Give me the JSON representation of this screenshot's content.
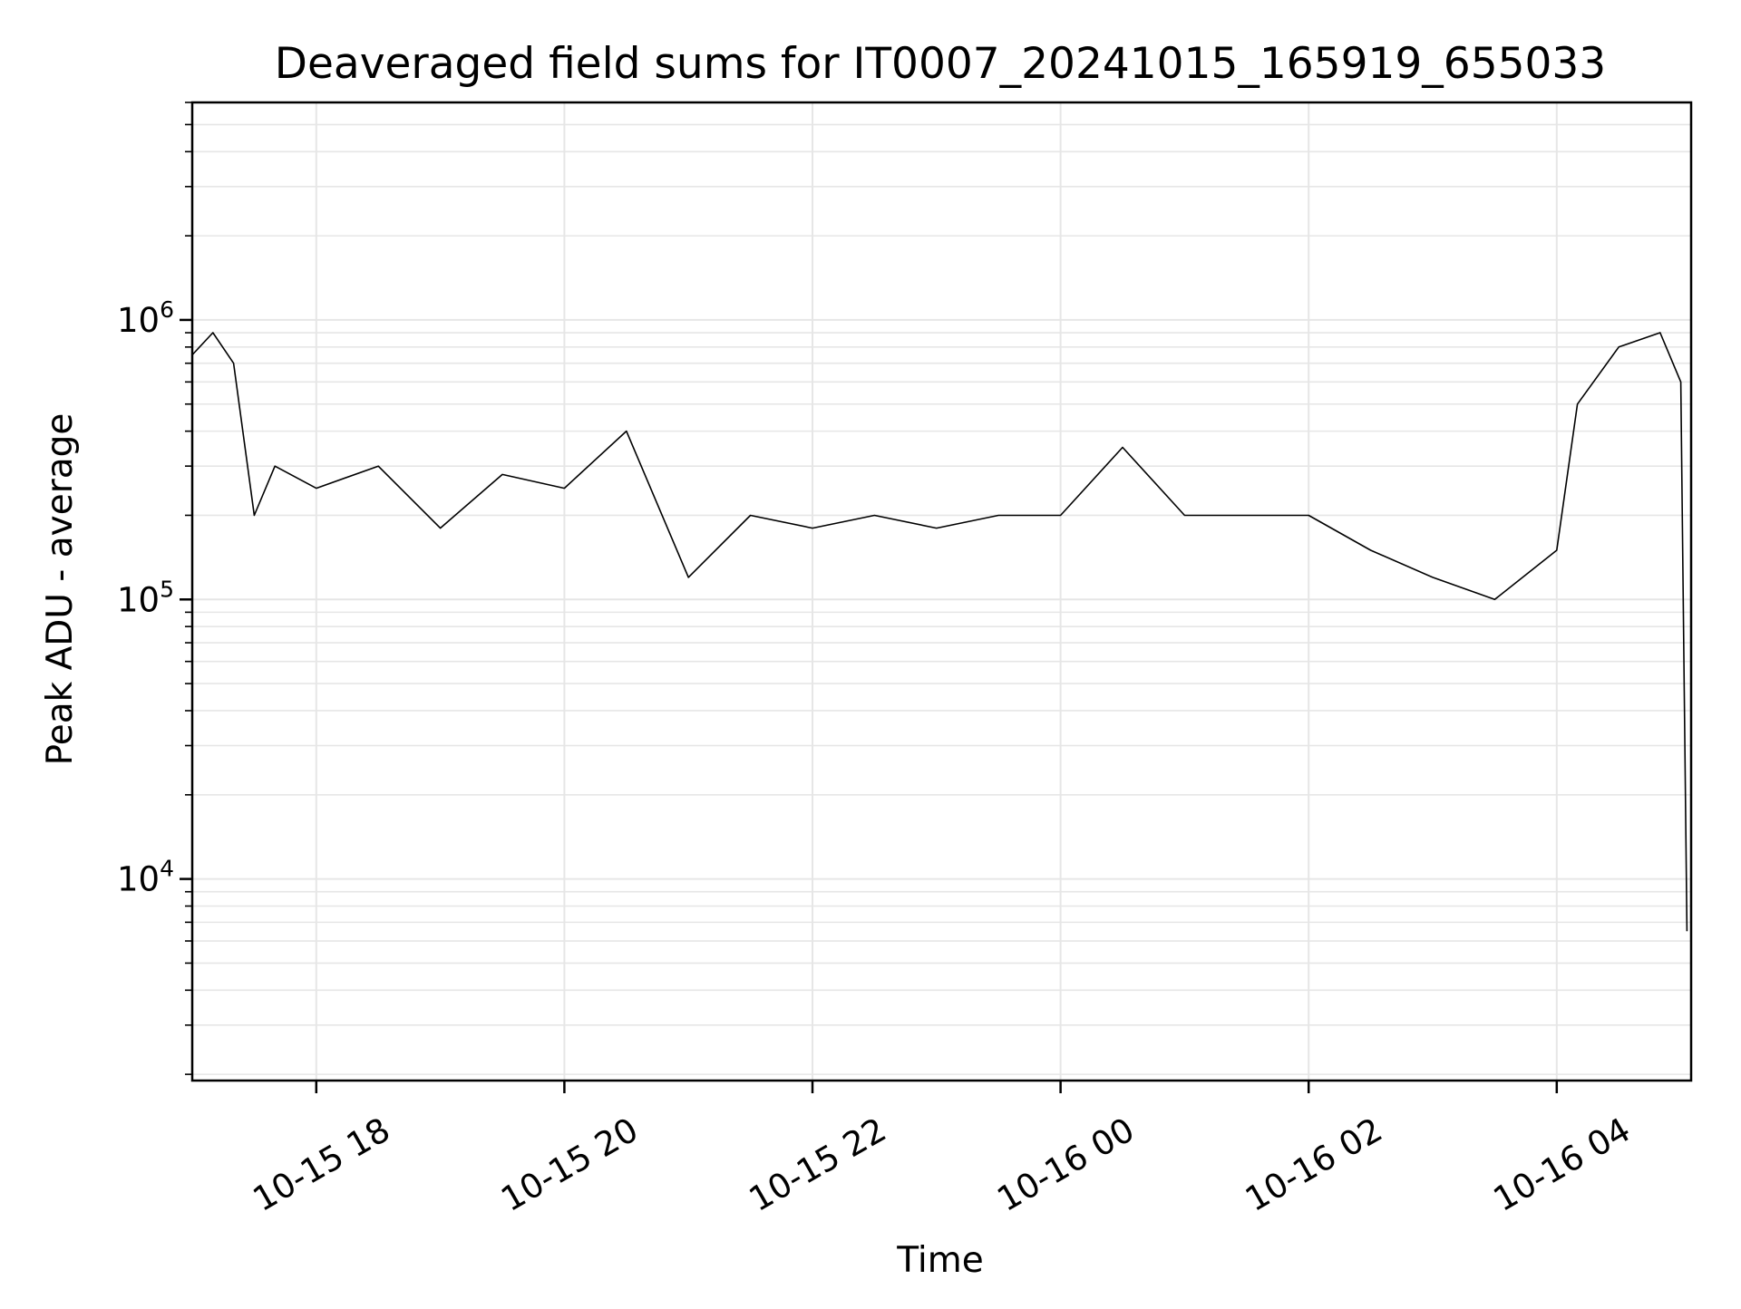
{
  "chart_data": {
    "type": "line",
    "title": "Deaveraged field sums for IT0007_20241015_165919_655033",
    "xlabel": "Time",
    "ylabel": "Peak ADU - average",
    "y_scale": "log",
    "x_range": [
      "2024-10-15T17:00:00",
      "2024-10-16T05:05:00"
    ],
    "ylim": [
      1900,
      6000000
    ],
    "grid": true,
    "x_ticks": [
      {
        "value": "2024-10-15T18:00:00",
        "label": "10-15 18"
      },
      {
        "value": "2024-10-15T20:00:00",
        "label": "10-15 20"
      },
      {
        "value": "2024-10-15T22:00:00",
        "label": "10-15 22"
      },
      {
        "value": "2024-10-16T00:00:00",
        "label": "10-16 00"
      },
      {
        "value": "2024-10-16T02:00:00",
        "label": "10-16 02"
      },
      {
        "value": "2024-10-16T04:00:00",
        "label": "10-16 04"
      }
    ],
    "y_ticks": [
      {
        "value": 10000,
        "base": "10",
        "exp": "4"
      },
      {
        "value": 100000,
        "base": "10",
        "exp": "5"
      },
      {
        "value": 1000000,
        "base": "10",
        "exp": "6"
      }
    ],
    "series": [
      {
        "color": "#000000",
        "points": [
          {
            "x": "2024-10-15T17:00:00",
            "y": 750000
          },
          {
            "x": "2024-10-15T17:10:00",
            "y": 900000
          },
          {
            "x": "2024-10-15T17:20:00",
            "y": 700000
          },
          {
            "x": "2024-10-15T17:30:00",
            "y": 200000
          },
          {
            "x": "2024-10-15T17:40:00",
            "y": 300000
          },
          {
            "x": "2024-10-15T18:00:00",
            "y": 250000
          },
          {
            "x": "2024-10-15T18:30:00",
            "y": 300000
          },
          {
            "x": "2024-10-15T19:00:00",
            "y": 180000
          },
          {
            "x": "2024-10-15T19:30:00",
            "y": 280000
          },
          {
            "x": "2024-10-15T20:00:00",
            "y": 250000
          },
          {
            "x": "2024-10-15T20:30:00",
            "y": 400000
          },
          {
            "x": "2024-10-15T21:00:00",
            "y": 120000
          },
          {
            "x": "2024-10-15T21:30:00",
            "y": 200000
          },
          {
            "x": "2024-10-15T22:00:00",
            "y": 180000
          },
          {
            "x": "2024-10-15T22:30:00",
            "y": 200000
          },
          {
            "x": "2024-10-15T23:00:00",
            "y": 180000
          },
          {
            "x": "2024-10-15T23:30:00",
            "y": 200000
          },
          {
            "x": "2024-10-16T00:00:00",
            "y": 200000
          },
          {
            "x": "2024-10-16T00:30:00",
            "y": 350000
          },
          {
            "x": "2024-10-16T01:00:00",
            "y": 200000
          },
          {
            "x": "2024-10-16T01:30:00",
            "y": 200000
          },
          {
            "x": "2024-10-16T02:00:00",
            "y": 200000
          },
          {
            "x": "2024-10-16T02:30:00",
            "y": 150000
          },
          {
            "x": "2024-10-16T03:00:00",
            "y": 120000
          },
          {
            "x": "2024-10-16T03:30:00",
            "y": 100000
          },
          {
            "x": "2024-10-16T04:00:00",
            "y": 150000
          },
          {
            "x": "2024-10-16T04:10:00",
            "y": 500000
          },
          {
            "x": "2024-10-16T04:30:00",
            "y": 800000
          },
          {
            "x": "2024-10-16T04:50:00",
            "y": 900000
          },
          {
            "x": "2024-10-16T05:00:00",
            "y": 600000
          },
          {
            "x": "2024-10-16T05:03:00",
            "y": 6500
          }
        ]
      }
    ]
  }
}
